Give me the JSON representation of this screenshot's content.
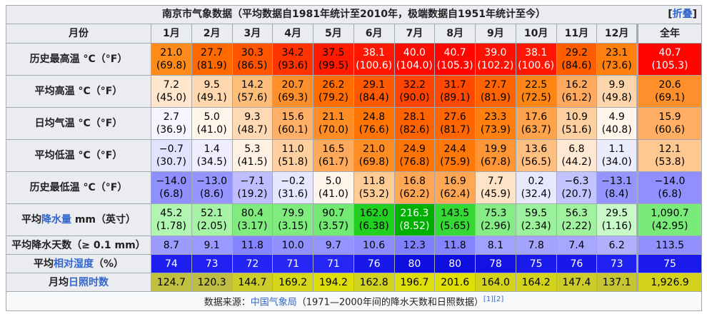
{
  "caption": {
    "title": "南京市气象数据（平均数据自1981年统计至2010年，极端数据自1951年统计至今）",
    "fold_open": "[",
    "fold_label": "折叠",
    "fold_close": "]"
  },
  "header": {
    "corner": "月份",
    "months": [
      "1月",
      "2月",
      "3月",
      "4月",
      "5月",
      "6月",
      "7月",
      "8月",
      "9月",
      "10月",
      "11月",
      "12月"
    ],
    "year": "全年"
  },
  "rows": [
    {
      "label_pre": "历史最高温 °C（°F）",
      "label_link": "",
      "label_post": "",
      "cells": [
        {
          "v": "21.0",
          "s": "(69.8)",
          "bg": "#ff8c1a",
          "fg": "#000000"
        },
        {
          "v": "27.7",
          "s": "(81.9)",
          "bg": "#ff6a00",
          "fg": "#000000"
        },
        {
          "v": "30.3",
          "s": "(86.5)",
          "bg": "#ff5500",
          "fg": "#000000"
        },
        {
          "v": "34.2",
          "s": "(93.6)",
          "bg": "#ff3300",
          "fg": "#000000"
        },
        {
          "v": "37.5",
          "s": "(99.5)",
          "bg": "#ff1a00",
          "fg": "#000000"
        },
        {
          "v": "38.1",
          "s": "(100.6)",
          "bg": "#ff1500",
          "fg": "#ffffff"
        },
        {
          "v": "40.0",
          "s": "(104.0)",
          "bg": "#ff0a00",
          "fg": "#ffffff"
        },
        {
          "v": "40.7",
          "s": "(105.3)",
          "bg": "#ff0500",
          "fg": "#ffffff"
        },
        {
          "v": "39.0",
          "s": "(102.2)",
          "bg": "#ff1000",
          "fg": "#ffffff"
        },
        {
          "v": "38.1",
          "s": "(100.6)",
          "bg": "#ff1500",
          "fg": "#ffffff"
        },
        {
          "v": "29.2",
          "s": "(84.6)",
          "bg": "#ff5e00",
          "fg": "#000000"
        },
        {
          "v": "23.1",
          "s": "(73.6)",
          "bg": "#ff7f0f",
          "fg": "#000000"
        }
      ],
      "year": {
        "v": "40.7",
        "s": "(105.3)",
        "bg": "#ff0500",
        "fg": "#ffffff"
      }
    },
    {
      "label_pre": "平均高温 °C（°F）",
      "label_link": "",
      "label_post": "",
      "cells": [
        {
          "v": "7.2",
          "s": "(45.0)",
          "bg": "#ffe6cc",
          "fg": "#000000"
        },
        {
          "v": "9.5",
          "s": "(49.1)",
          "bg": "#ffd8b0",
          "fg": "#000000"
        },
        {
          "v": "14.2",
          "s": "(57.6)",
          "bg": "#ffbd7a",
          "fg": "#000000"
        },
        {
          "v": "20.7",
          "s": "(69.3)",
          "bg": "#ff8f2a",
          "fg": "#000000"
        },
        {
          "v": "26.2",
          "s": "(79.2)",
          "bg": "#ff6d00",
          "fg": "#000000"
        },
        {
          "v": "29.1",
          "s": "(84.4)",
          "bg": "#ff5a00",
          "fg": "#000000"
        },
        {
          "v": "32.2",
          "s": "(90.0)",
          "bg": "#ff4400",
          "fg": "#000000"
        },
        {
          "v": "31.7",
          "s": "(89.1)",
          "bg": "#ff4800",
          "fg": "#000000"
        },
        {
          "v": "27.7",
          "s": "(81.9)",
          "bg": "#ff6400",
          "fg": "#000000"
        },
        {
          "v": "22.5",
          "s": "(72.5)",
          "bg": "#ff8515",
          "fg": "#000000"
        },
        {
          "v": "16.2",
          "s": "(61.2)",
          "bg": "#ffaa5e",
          "fg": "#000000"
        },
        {
          "v": "9.9",
          "s": "(49.8)",
          "bg": "#ffd6ab",
          "fg": "#000000"
        }
      ],
      "year": {
        "v": "20.6",
        "s": "(69.1)",
        "bg": "#ff8f2a",
        "fg": "#000000"
      }
    },
    {
      "label_pre": "日均气温 °C（°F）",
      "label_link": "",
      "label_post": "",
      "cells": [
        {
          "v": "2.7",
          "s": "(36.9)",
          "bg": "#f5f5ff",
          "fg": "#000000"
        },
        {
          "v": "5.0",
          "s": "(41.0)",
          "bg": "#fff5ea",
          "fg": "#000000"
        },
        {
          "v": "9.3",
          "s": "(48.7)",
          "bg": "#ffd9b3",
          "fg": "#000000"
        },
        {
          "v": "15.6",
          "s": "(60.1)",
          "bg": "#ffb066",
          "fg": "#000000"
        },
        {
          "v": "21.1",
          "s": "(70.0)",
          "bg": "#ff8d25",
          "fg": "#000000"
        },
        {
          "v": "24.8",
          "s": "(76.6)",
          "bg": "#ff7505",
          "fg": "#000000"
        },
        {
          "v": "28.1",
          "s": "(82.6)",
          "bg": "#ff6200",
          "fg": "#000000"
        },
        {
          "v": "27.6",
          "s": "(81.7)",
          "bg": "#ff6500",
          "fg": "#000000"
        },
        {
          "v": "23.3",
          "s": "(73.9)",
          "bg": "#ff800f",
          "fg": "#000000"
        },
        {
          "v": "17.6",
          "s": "(63.7)",
          "bg": "#ffa34d",
          "fg": "#000000"
        },
        {
          "v": "10.9",
          "s": "(51.6)",
          "bg": "#ffd09f",
          "fg": "#000000"
        },
        {
          "v": "4.9",
          "s": "(40.8)",
          "bg": "#fff5ea",
          "fg": "#000000"
        }
      ],
      "year": {
        "v": "15.9",
        "s": "(60.6)",
        "bg": "#ffae63",
        "fg": "#000000"
      }
    },
    {
      "label_pre": "平均低温 °C（°F）",
      "label_link": "",
      "label_post": "",
      "cells": [
        {
          "v": "−0.7",
          "s": "(30.7)",
          "bg": "#e2e2ff",
          "fg": "#000000"
        },
        {
          "v": "1.4",
          "s": "(34.5)",
          "bg": "#eeeeff",
          "fg": "#000000"
        },
        {
          "v": "5.3",
          "s": "(41.5)",
          "bg": "#fff2e5",
          "fg": "#000000"
        },
        {
          "v": "11.0",
          "s": "(51.8)",
          "bg": "#ffcf9f",
          "fg": "#000000"
        },
        {
          "v": "16.5",
          "s": "(61.7)",
          "bg": "#ffa95a",
          "fg": "#000000"
        },
        {
          "v": "21.0",
          "s": "(69.8)",
          "bg": "#ff8d25",
          "fg": "#000000"
        },
        {
          "v": "24.9",
          "s": "(76.8)",
          "bg": "#ff7505",
          "fg": "#000000"
        },
        {
          "v": "24.4",
          "s": "(75.9)",
          "bg": "#ff780a",
          "fg": "#000000"
        },
        {
          "v": "19.9",
          "s": "(67.8)",
          "bg": "#ff9535",
          "fg": "#000000"
        },
        {
          "v": "13.6",
          "s": "(56.5)",
          "bg": "#ffbf80",
          "fg": "#000000"
        },
        {
          "v": "6.8",
          "s": "(44.2)",
          "bg": "#ffe8d1",
          "fg": "#000000"
        },
        {
          "v": "1.1",
          "s": "(34.0)",
          "bg": "#ececff",
          "fg": "#000000"
        }
      ],
      "year": {
        "v": "12.1",
        "s": "(53.8)",
        "bg": "#ffc890",
        "fg": "#000000"
      }
    },
    {
      "label_pre": "历史最低温 °C（°F）",
      "label_link": "",
      "label_post": "",
      "cells": [
        {
          "v": "−14.0",
          "s": "(6.8)",
          "bg": "#8f8fff",
          "fg": "#000000"
        },
        {
          "v": "−13.0",
          "s": "(8.6)",
          "bg": "#9595ff",
          "fg": "#000000"
        },
        {
          "v": "−7.1",
          "s": "(19.2)",
          "bg": "#bdbdff",
          "fg": "#000000"
        },
        {
          "v": "−0.2",
          "s": "(31.6)",
          "bg": "#e6e6ff",
          "fg": "#000000"
        },
        {
          "v": "5.0",
          "s": "(41.0)",
          "bg": "#fff5ea",
          "fg": "#000000"
        },
        {
          "v": "11.8",
          "s": "(53.2)",
          "bg": "#ffcc95",
          "fg": "#000000"
        },
        {
          "v": "16.8",
          "s": "(62.2)",
          "bg": "#ffa754",
          "fg": "#000000"
        },
        {
          "v": "16.9",
          "s": "(62.4)",
          "bg": "#ffa754",
          "fg": "#000000"
        },
        {
          "v": "7.7",
          "s": "(45.9)",
          "bg": "#ffe3c7",
          "fg": "#000000"
        },
        {
          "v": "0.2",
          "s": "(32.4)",
          "bg": "#e8e8ff",
          "fg": "#000000"
        },
        {
          "v": "−6.3",
          "s": "(20.7)",
          "bg": "#c3c3ff",
          "fg": "#000000"
        },
        {
          "v": "−13.1",
          "s": "(8.4)",
          "bg": "#9595ff",
          "fg": "#000000"
        }
      ],
      "year": {
        "v": "−14.0",
        "s": "(6.8)",
        "bg": "#8f8fff",
        "fg": "#000000"
      }
    },
    {
      "label_pre": "平均",
      "label_link": "降水量",
      "label_post": " mm（英寸）",
      "cells": [
        {
          "v": "45.2",
          "s": "(1.78)",
          "bg": "#b0f5b0",
          "fg": "#000000"
        },
        {
          "v": "52.1",
          "s": "(2.05)",
          "bg": "#a6f3a6",
          "fg": "#000000"
        },
        {
          "v": "80.4",
          "s": "(3.17)",
          "bg": "#80ec80",
          "fg": "#000000"
        },
        {
          "v": "79.9",
          "s": "(3.15)",
          "bg": "#80ec80",
          "fg": "#000000"
        },
        {
          "v": "90.7",
          "s": "(3.57)",
          "bg": "#72e972",
          "fg": "#000000"
        },
        {
          "v": "162.0",
          "s": "(6.38)",
          "bg": "#22d022",
          "fg": "#000000"
        },
        {
          "v": "216.3",
          "s": "(8.52)",
          "bg": "#00b000",
          "fg": "#ffffff"
        },
        {
          "v": "143.5",
          "s": "(5.65)",
          "bg": "#36d836",
          "fg": "#000000"
        },
        {
          "v": "75.3",
          "s": "(2.96)",
          "bg": "#86ed86",
          "fg": "#000000"
        },
        {
          "v": "59.5",
          "s": "(2.34)",
          "bg": "#9cf19c",
          "fg": "#000000"
        },
        {
          "v": "56.3",
          "s": "(2.22)",
          "bg": "#a0f2a0",
          "fg": "#000000"
        },
        {
          "v": "29.5",
          "s": "(1.16)",
          "bg": "#c8f9c8",
          "fg": "#000000"
        }
      ],
      "year": {
        "v": "1,090.7",
        "s": "(42.95)",
        "bg": "#7aeb7a",
        "fg": "#000000"
      }
    }
  ],
  "thin_rows": [
    {
      "label_pre": "平均降水天数（≥ 0.1 mm）",
      "label_link": "",
      "label_post": "",
      "cells": [
        {
          "v": "8.7",
          "bg": "#9c9cff",
          "fg": "#000000"
        },
        {
          "v": "9.1",
          "bg": "#9999ff",
          "fg": "#000000"
        },
        {
          "v": "11.8",
          "bg": "#8484ff",
          "fg": "#000000"
        },
        {
          "v": "10.0",
          "bg": "#9090ff",
          "fg": "#000000"
        },
        {
          "v": "9.7",
          "bg": "#9494ff",
          "fg": "#000000"
        },
        {
          "v": "10.6",
          "bg": "#8d8dff",
          "fg": "#000000"
        },
        {
          "v": "12.3",
          "bg": "#8080ff",
          "fg": "#000000"
        },
        {
          "v": "11.8",
          "bg": "#8484ff",
          "fg": "#000000"
        },
        {
          "v": "8.1",
          "bg": "#a1a1ff",
          "fg": "#000000"
        },
        {
          "v": "7.8",
          "bg": "#a4a4ff",
          "fg": "#000000"
        },
        {
          "v": "7.4",
          "bg": "#a7a7ff",
          "fg": "#000000"
        },
        {
          "v": "6.2",
          "bg": "#b0b0ff",
          "fg": "#000000"
        }
      ],
      "year": {
        "v": "113.5",
        "bg": "#9090ff",
        "fg": "#000000"
      }
    },
    {
      "label_pre": "平均",
      "label_link": "相对湿度",
      "label_post": "（%）",
      "cells": [
        {
          "v": "74",
          "bg": "#1e1ef0",
          "fg": "#ffffff"
        },
        {
          "v": "73",
          "bg": "#2020f2",
          "fg": "#ffffff"
        },
        {
          "v": "72",
          "bg": "#2424f4",
          "fg": "#ffffff"
        },
        {
          "v": "71",
          "bg": "#2626f5",
          "fg": "#ffffff"
        },
        {
          "v": "71",
          "bg": "#2626f5",
          "fg": "#ffffff"
        },
        {
          "v": "76",
          "bg": "#1818ea",
          "fg": "#ffffff"
        },
        {
          "v": "80",
          "bg": "#0d0de0",
          "fg": "#ffffff"
        },
        {
          "v": "80",
          "bg": "#0d0de0",
          "fg": "#ffffff"
        },
        {
          "v": "78",
          "bg": "#1212e5",
          "fg": "#ffffff"
        },
        {
          "v": "75",
          "bg": "#1a1aec",
          "fg": "#ffffff"
        },
        {
          "v": "76",
          "bg": "#1818ea",
          "fg": "#ffffff"
        },
        {
          "v": "73",
          "bg": "#2020f2",
          "fg": "#ffffff"
        }
      ],
      "year": {
        "v": "75",
        "bg": "#1a1aec",
        "fg": "#ffffff"
      }
    },
    {
      "label_pre": "月均",
      "label_link": "日照时数",
      "label_post": "",
      "cells": [
        {
          "v": "124.7",
          "bg": "#bfbf40",
          "fg": "#000000"
        },
        {
          "v": "120.3",
          "bg": "#bdbd45",
          "fg": "#000000"
        },
        {
          "v": "144.7",
          "bg": "#cccc2a",
          "fg": "#000000"
        },
        {
          "v": "169.2",
          "bg": "#d6d61a",
          "fg": "#000000"
        },
        {
          "v": "194.2",
          "bg": "#dddd0c",
          "fg": "#000000"
        },
        {
          "v": "162.8",
          "bg": "#d2d220",
          "fg": "#000000"
        },
        {
          "v": "196.7",
          "bg": "#dede0a",
          "fg": "#000000"
        },
        {
          "v": "201.6",
          "bg": "#e0e008",
          "fg": "#000000"
        },
        {
          "v": "164.0",
          "bg": "#d3d31e",
          "fg": "#000000"
        },
        {
          "v": "164.2",
          "bg": "#d3d31e",
          "fg": "#000000"
        },
        {
          "v": "147.4",
          "bg": "#cccc2a",
          "fg": "#000000"
        },
        {
          "v": "137.1",
          "bg": "#c6c635",
          "fg": "#000000"
        }
      ],
      "year": {
        "v": "1,926.9",
        "bg": "#d3d31e",
        "fg": "#000000"
      }
    }
  ],
  "footer": {
    "pre": "数据来源：",
    "link": "中国气象局",
    "post": "（1971—2000年间的降水天数和日照数据）",
    "refs": "[1][2]"
  }
}
